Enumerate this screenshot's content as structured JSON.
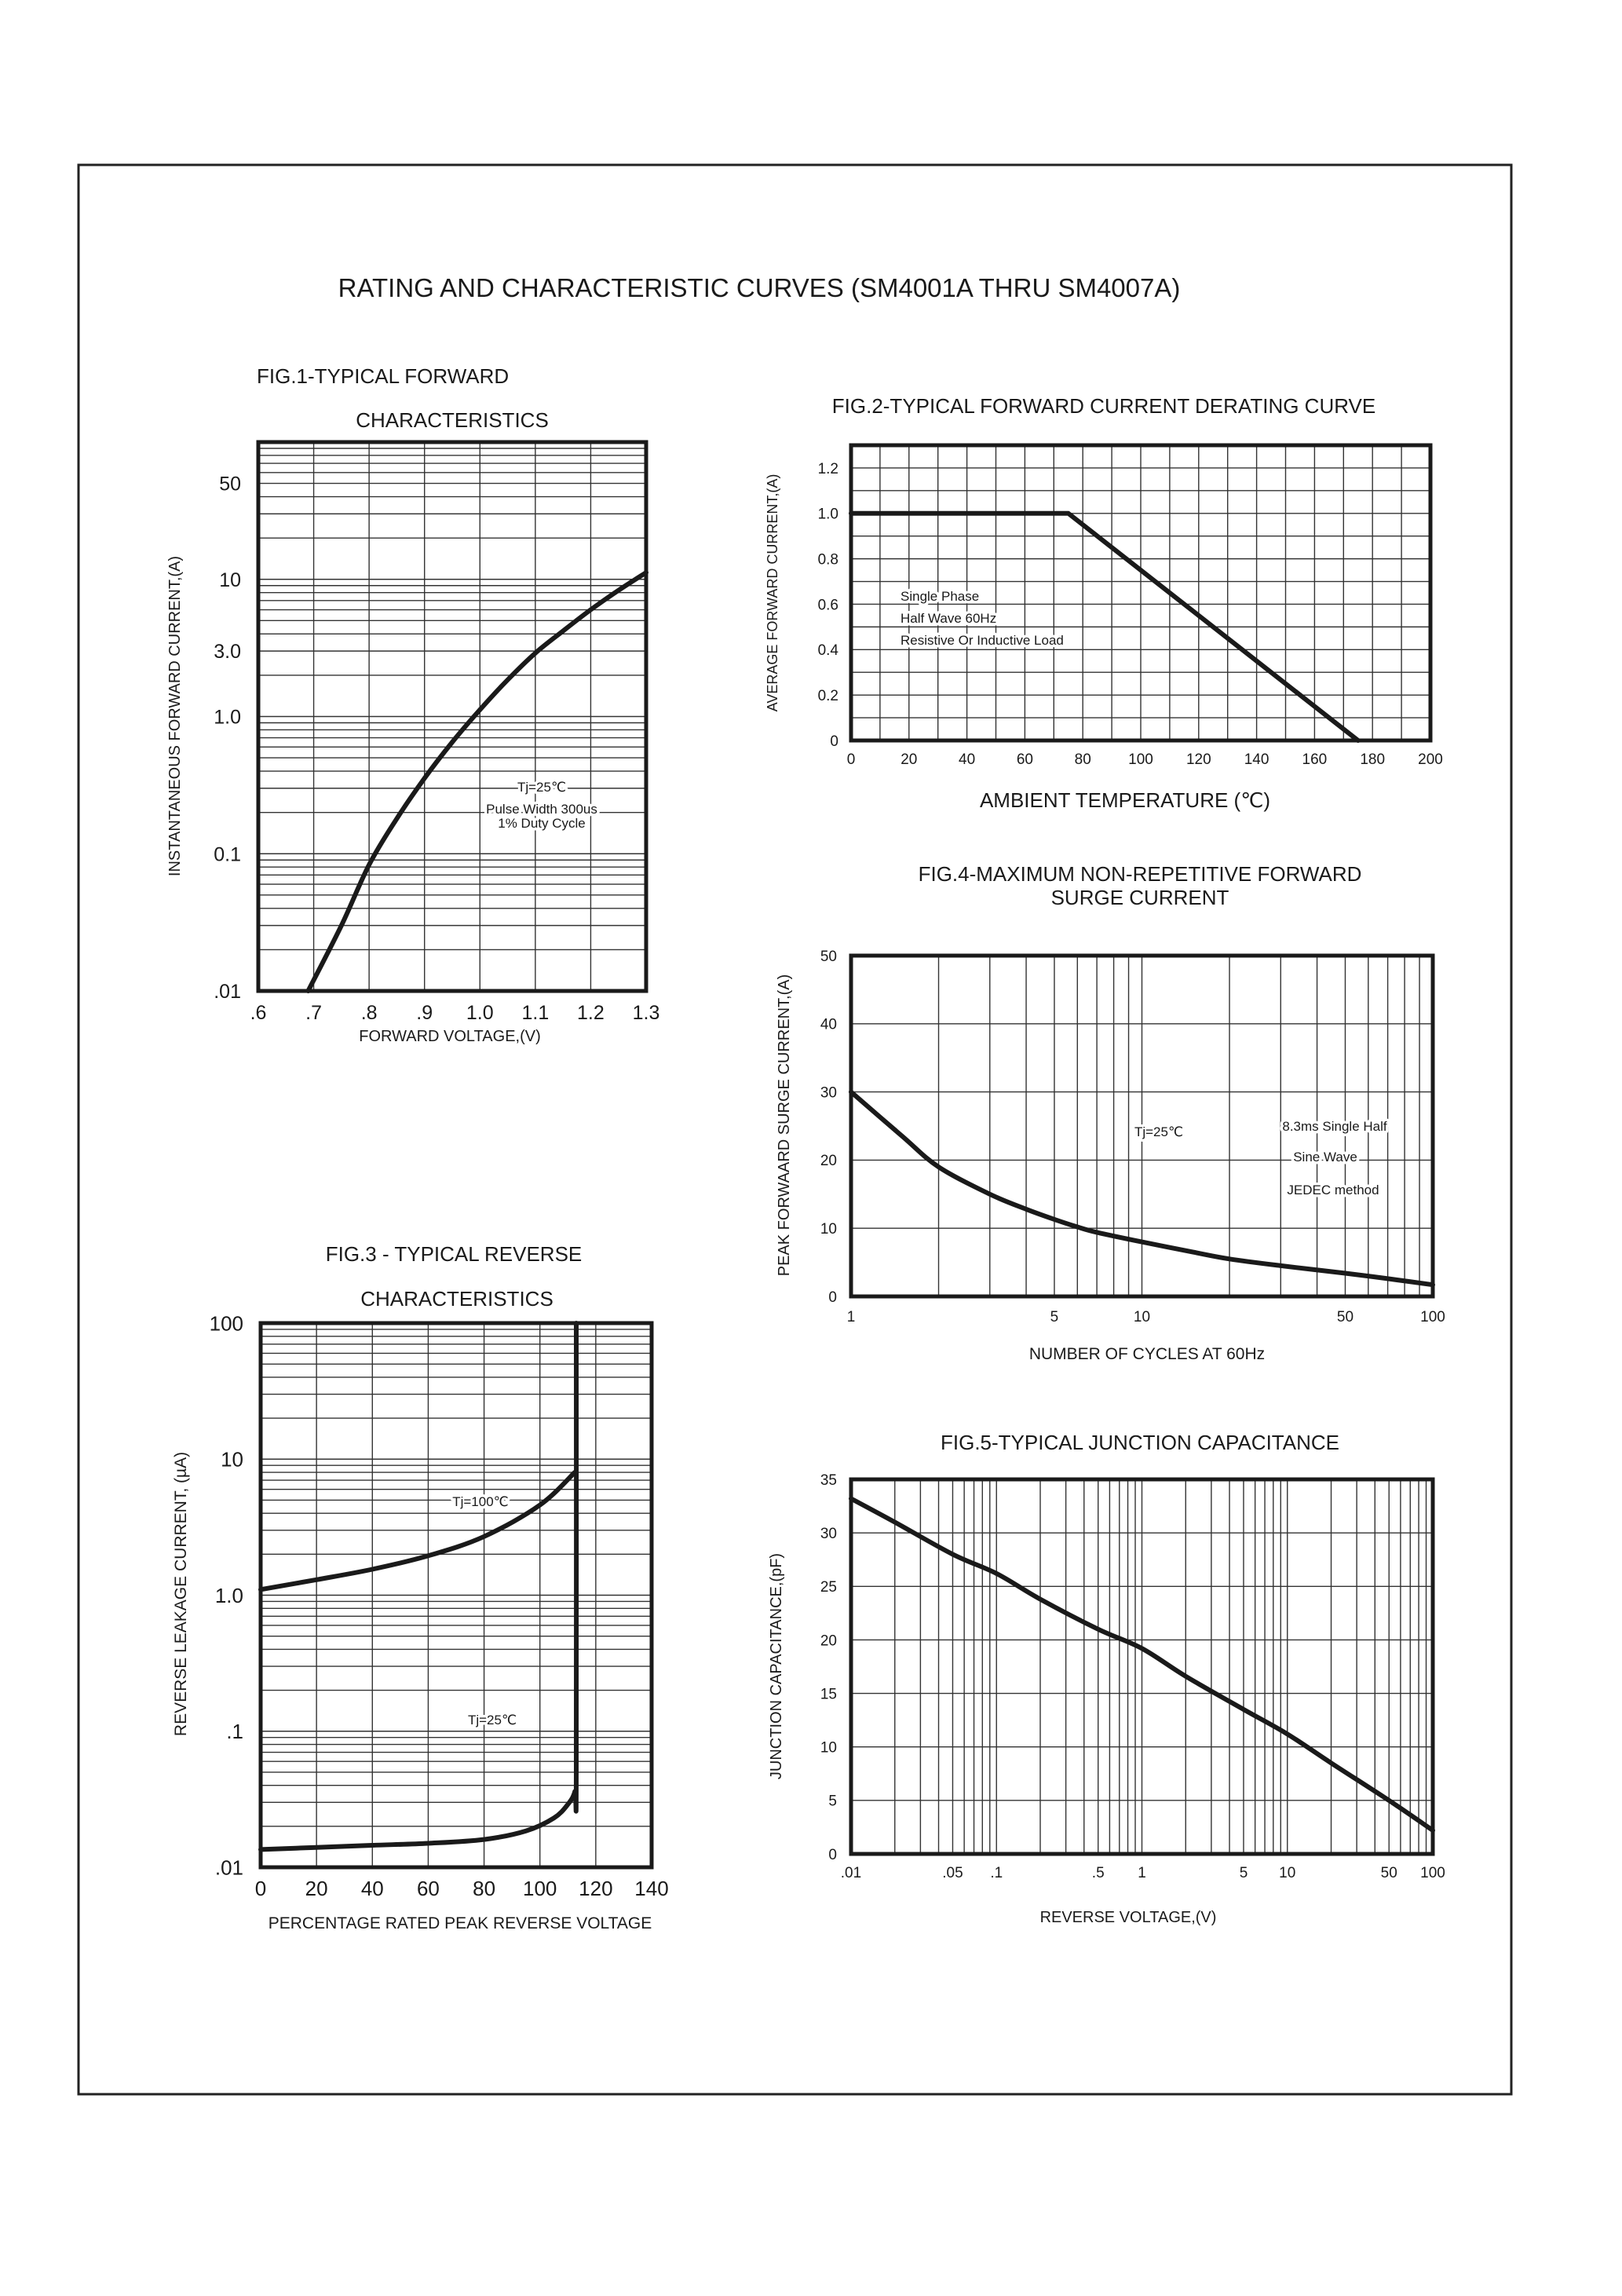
{
  "page_title": "RATING AND CHARACTERISTIC CURVES (SM4001A THRU SM4007A)",
  "chart_data": [
    {
      "id": "fig1",
      "type": "line",
      "title": [
        "FIG.1-TYPICAL FORWARD",
        "CHARACTERISTICS"
      ],
      "xlabel": "FORWARD VOLTAGE,(V)",
      "ylabel": "INSTANTANEOUS FORWARD CURRENT,(A)",
      "x_scale": "linear",
      "y_scale": "log",
      "xlim": [
        0.6,
        1.3
      ],
      "ylim": [
        0.01,
        100
      ],
      "grid": true,
      "x_ticks": [
        {
          "value": 0.6,
          "label": ".6"
        },
        {
          "value": 0.7,
          "label": ".7"
        },
        {
          "value": 0.8,
          "label": ".8"
        },
        {
          "value": 0.9,
          "label": ".9"
        },
        {
          "value": 1.0,
          "label": "1.0"
        },
        {
          "value": 1.1,
          "label": "1.1"
        },
        {
          "value": 1.2,
          "label": "1.2"
        },
        {
          "value": 1.3,
          "label": "1.3"
        }
      ],
      "y_ticks": [
        {
          "value": 50,
          "label": "50"
        },
        {
          "value": 10,
          "label": "10"
        },
        {
          "value": 3,
          "label": "3.0"
        },
        {
          "value": 1,
          "label": "1.0"
        },
        {
          "value": 0.1,
          "label": "0.1"
        },
        {
          "value": 0.01,
          "label": ".01"
        }
      ],
      "annotations": [
        "Tj=25℃",
        "Pulse Width 300us",
        "1% Duty Cycle"
      ],
      "series": [
        {
          "x": [
            0.69,
            0.75,
            0.8,
            0.85,
            0.9,
            0.95,
            1.0,
            1.05,
            1.1,
            1.15,
            1.2,
            1.25,
            1.3
          ],
          "y": [
            0.01,
            0.03,
            0.083,
            0.18,
            0.355,
            0.65,
            1.12,
            1.85,
            2.9,
            4.2,
            6.0,
            8.3,
            11.2
          ]
        }
      ]
    },
    {
      "id": "fig2",
      "type": "line",
      "title": [
        "FIG.2-TYPICAL FORWARD CURRENT DERATING CURVE"
      ],
      "xlabel": "AMBIENT TEMPERATURE (℃)",
      "ylabel": "AVERAGE FORWARD CURRENT,(A)",
      "x_scale": "linear",
      "y_scale": "linear",
      "xlim": [
        0,
        200
      ],
      "ylim": [
        0,
        1.3
      ],
      "grid": true,
      "x_ticks": [
        {
          "value": 0,
          "label": "0"
        },
        {
          "value": 20,
          "label": "20"
        },
        {
          "value": 40,
          "label": "40"
        },
        {
          "value": 60,
          "label": "60"
        },
        {
          "value": 80,
          "label": "80"
        },
        {
          "value": 100,
          "label": "100"
        },
        {
          "value": 120,
          "label": "120"
        },
        {
          "value": 140,
          "label": "140"
        },
        {
          "value": 160,
          "label": "160"
        },
        {
          "value": 180,
          "label": "180"
        },
        {
          "value": 200,
          "label": "200"
        }
      ],
      "y_ticks": [
        {
          "value": 0,
          "label": "0"
        },
        {
          "value": 0.2,
          "label": "0.2"
        },
        {
          "value": 0.4,
          "label": "0.4"
        },
        {
          "value": 0.6,
          "label": "0.6"
        },
        {
          "value": 0.8,
          "label": "0.8"
        },
        {
          "value": 1.0,
          "label": "1.0"
        },
        {
          "value": 1.2,
          "label": "1.2"
        }
      ],
      "annotations": [
        "Single Phase",
        "Half Wave 60Hz",
        "Resistive Or Inductive Load"
      ],
      "series": [
        {
          "x": [
            0,
            75,
            175
          ],
          "y": [
            1.0,
            1.0,
            0
          ]
        }
      ]
    },
    {
      "id": "fig3",
      "type": "line",
      "title": [
        "FIG.3 - TYPICAL REVERSE",
        "CHARACTERISTICS"
      ],
      "xlabel": "PERCENTAGE RATED PEAK REVERSE VOLTAGE",
      "ylabel": "REVERSE LEAKAGE CURRENT, (µA)",
      "x_scale": "linear",
      "y_scale": "log",
      "xlim": [
        0,
        140
      ],
      "ylim": [
        0.01,
        100
      ],
      "grid": true,
      "x_ticks": [
        {
          "value": 0,
          "label": "0"
        },
        {
          "value": 20,
          "label": "20"
        },
        {
          "value": 40,
          "label": "40"
        },
        {
          "value": 60,
          "label": "60"
        },
        {
          "value": 80,
          "label": "80"
        },
        {
          "value": 100,
          "label": "100"
        },
        {
          "value": 120,
          "label": "120"
        },
        {
          "value": 140,
          "label": "140"
        }
      ],
      "y_ticks": [
        {
          "value": 100,
          "label": "100"
        },
        {
          "value": 10,
          "label": "10"
        },
        {
          "value": 1,
          "label": "1.0"
        },
        {
          "value": 0.1,
          "label": ".1"
        },
        {
          "value": 0.01,
          "label": ".01"
        }
      ],
      "annotations": [
        "Tj=100℃",
        "Tj=25℃"
      ],
      "series": [
        {
          "name": "Tj=100℃",
          "x": [
            0,
            20,
            40,
            60,
            80,
            100,
            112.5
          ],
          "y": [
            1.1,
            1.3,
            1.55,
            1.95,
            2.7,
            4.6,
            8
          ]
        },
        {
          "name": "Tj=25℃",
          "x": [
            0,
            20,
            40,
            60,
            80,
            95,
            105,
            110,
            112.5,
            113,
            113
          ],
          "y": [
            0.0135,
            0.014,
            0.0145,
            0.015,
            0.016,
            0.0185,
            0.023,
            0.029,
            0.036,
            0.05,
            100
          ]
        }
      ]
    },
    {
      "id": "fig4",
      "type": "line",
      "title": [
        "FIG.4-MAXIMUM NON-REPETITIVE FORWARD",
        "SURGE CURRENT"
      ],
      "xlabel": "NUMBER OF CYCLES AT 60Hz",
      "ylabel": "PEAK FORWAARD SURGE CURRENT,(A)",
      "x_scale": "log",
      "y_scale": "linear",
      "xlim": [
        1,
        100
      ],
      "ylim": [
        0,
        50
      ],
      "grid": true,
      "x_ticks": [
        {
          "value": 1,
          "label": "1"
        },
        {
          "value": 5,
          "label": "5"
        },
        {
          "value": 10,
          "label": "10"
        },
        {
          "value": 50,
          "label": "50"
        },
        {
          "value": 100,
          "label": "100"
        }
      ],
      "y_ticks": [
        {
          "value": 0,
          "label": "0"
        },
        {
          "value": 10,
          "label": "10"
        },
        {
          "value": 20,
          "label": "20"
        },
        {
          "value": 30,
          "label": "30"
        },
        {
          "value": 40,
          "label": "40"
        },
        {
          "value": 50,
          "label": "50"
        }
      ],
      "annotations": [
        "Tj=25℃",
        "8.3ms Single Half",
        "Sine Wave",
        "JEDEC method"
      ],
      "series": [
        {
          "x": [
            1,
            1.5,
            2,
            3,
            4,
            5,
            6,
            7,
            10,
            15,
            20,
            30,
            50,
            70,
            100
          ],
          "y": [
            30,
            23.5,
            19,
            15,
            12.8,
            11.3,
            10.2,
            9.4,
            8,
            6.5,
            5.5,
            4.5,
            3.4,
            2.6,
            1.7
          ]
        }
      ]
    },
    {
      "id": "fig5",
      "type": "line",
      "title": [
        "FIG.5-TYPICAL JUNCTION CAPACITANCE"
      ],
      "xlabel": "REVERSE VOLTAGE,(V)",
      "ylabel": "JUNCTION CAPACITANCE,(pF)",
      "x_scale": "log",
      "y_scale": "linear",
      "xlim": [
        0.01,
        100
      ],
      "ylim": [
        0,
        35
      ],
      "grid": true,
      "x_ticks": [
        {
          "value": 0.01,
          "label": ".01"
        },
        {
          "value": 0.05,
          "label": ".05"
        },
        {
          "value": 0.1,
          "label": ".1"
        },
        {
          "value": 0.5,
          "label": ".5"
        },
        {
          "value": 1,
          "label": "1"
        },
        {
          "value": 5,
          "label": "5"
        },
        {
          "value": 10,
          "label": "10"
        },
        {
          "value": 50,
          "label": "50"
        },
        {
          "value": 100,
          "label": "100"
        }
      ],
      "y_ticks": [
        {
          "value": 0,
          "label": "0"
        },
        {
          "value": 5,
          "label": "5"
        },
        {
          "value": 10,
          "label": "10"
        },
        {
          "value": 15,
          "label": "15"
        },
        {
          "value": 20,
          "label": "20"
        },
        {
          "value": 25,
          "label": "25"
        },
        {
          "value": 30,
          "label": "30"
        },
        {
          "value": 35,
          "label": "35"
        }
      ],
      "series": [
        {
          "x": [
            0.01,
            0.02,
            0.05,
            0.1,
            0.2,
            0.5,
            1,
            2,
            5,
            10,
            20,
            50,
            100
          ],
          "y": [
            33.2,
            31,
            28,
            26.2,
            23.8,
            21,
            19.2,
            16.6,
            13.5,
            11.2,
            8.5,
            5,
            2.2
          ]
        }
      ]
    }
  ]
}
